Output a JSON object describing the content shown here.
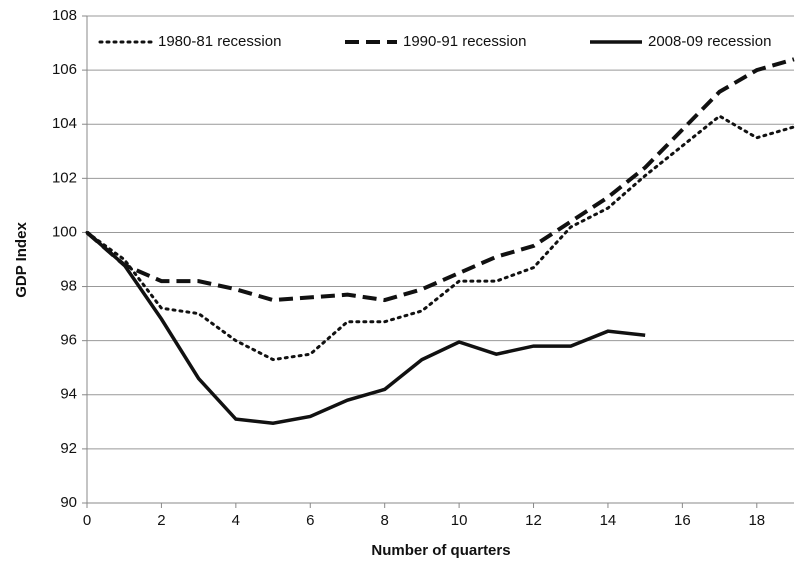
{
  "chart_data": {
    "type": "line",
    "x_label": "Number of quarters",
    "y_label": "GDP Index",
    "x": [
      0,
      1,
      2,
      3,
      4,
      5,
      6,
      7,
      8,
      9,
      10,
      11,
      12,
      13,
      14,
      15,
      16,
      17,
      18,
      19
    ],
    "xlim": [
      0,
      19
    ],
    "xticks": [
      0,
      2,
      4,
      6,
      8,
      10,
      12,
      14,
      16,
      18
    ],
    "ylim": [
      90,
      108
    ],
    "yticks": [
      90,
      92,
      94,
      96,
      98,
      100,
      102,
      104,
      106,
      108
    ],
    "grid": true,
    "legend": "top",
    "series": [
      {
        "name": "1980-81 recession",
        "color": "#111111",
        "style": "dotted",
        "values": [
          100,
          99.0,
          97.2,
          97.0,
          96.0,
          95.3,
          95.5,
          96.7,
          96.7,
          97.1,
          98.2,
          98.2,
          98.7,
          100.2,
          100.9,
          102.1,
          103.2,
          104.3,
          103.5,
          103.9
        ]
      },
      {
        "name": "1990-91 recession",
        "color": "#111111",
        "style": "dashed",
        "values": [
          100,
          98.8,
          98.2,
          98.2,
          97.9,
          97.5,
          97.6,
          97.7,
          97.5,
          97.9,
          98.5,
          99.1,
          99.5,
          100.4,
          101.3,
          102.4,
          103.8,
          105.2,
          106.0,
          106.4
        ]
      },
      {
        "name": "2008-09 recession",
        "color": "#111111",
        "style": "solid",
        "values": [
          100,
          98.8,
          96.8,
          94.6,
          93.1,
          92.95,
          93.2,
          93.8,
          94.2,
          95.3,
          95.95,
          95.5,
          95.8,
          95.8,
          96.35,
          96.2,
          null,
          null,
          null,
          null
        ]
      }
    ]
  }
}
